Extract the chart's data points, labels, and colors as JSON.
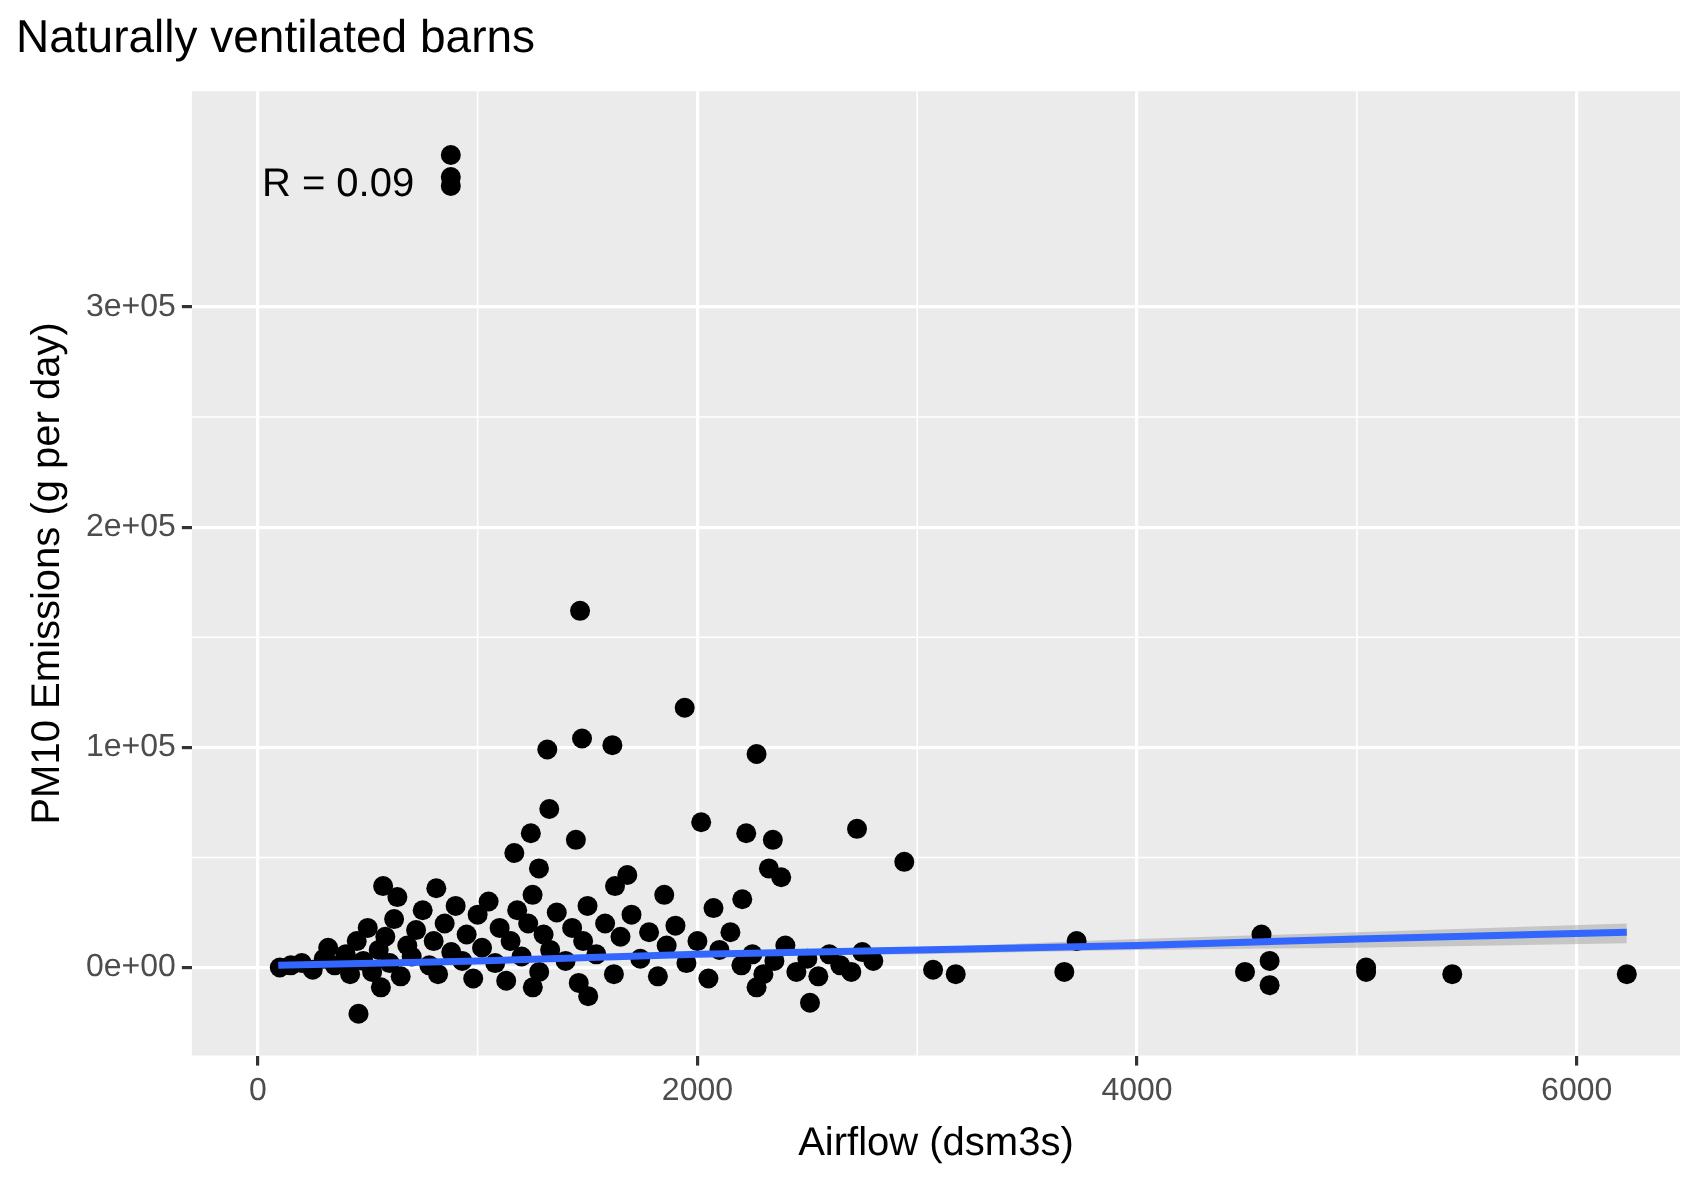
{
  "chart_data": {
    "type": "scatter",
    "title": "Naturally ventilated barns",
    "xlabel": "Airflow (dsm3s)",
    "ylabel": "PM10 Emissions (g per day)",
    "annotations": [
      "R = 0.09"
    ],
    "xlim": [
      -300,
      6470
    ],
    "xticks": [
      0,
      2000,
      4000,
      6000
    ],
    "ylim": [
      -40000,
      398000
    ],
    "yticks": [
      {
        "value": 0,
        "label": "0e+00"
      },
      {
        "value": 100000,
        "label": "1e+05"
      },
      {
        "value": 200000,
        "label": "2e+05"
      },
      {
        "value": 300000,
        "label": "3e+05"
      }
    ],
    "grid": true,
    "legend": false,
    "series": [
      {
        "marker": "circle",
        "color": "#000000",
        "x": [
          878,
          878,
          878,
          1466,
          1942,
          1317,
          1475,
          1613,
          2269,
          1326,
          2017,
          2222,
          2343,
          2726,
          2941,
          1242,
          1167,
          1447,
          1279,
          2325,
          2381,
          2204,
          1849,
          1681,
          1625,
          570,
          812,
          635,
          2073,
          458,
          1503,
          2512,
          2269,
          560,
          1251,
          3072,
          3175,
          3669,
          3725,
          4491,
          4566,
          4603,
          4603,
          5042,
          5042,
          5434,
          6228,
          100,
          150,
          200,
          250,
          300,
          320,
          350,
          400,
          420,
          450,
          480,
          500,
          520,
          550,
          580,
          600,
          620,
          650,
          680,
          700,
          720,
          750,
          780,
          800,
          820,
          850,
          880,
          900,
          930,
          950,
          980,
          1000,
          1020,
          1050,
          1080,
          1100,
          1130,
          1150,
          1180,
          1200,
          1230,
          1250,
          1280,
          1300,
          1330,
          1360,
          1400,
          1430,
          1460,
          1480,
          1500,
          1540,
          1580,
          1620,
          1650,
          1700,
          1740,
          1780,
          1820,
          1860,
          1900,
          1950,
          2000,
          2050,
          2100,
          2150,
          2200,
          2250,
          2300,
          2350,
          2400,
          2450,
          2500,
          2550,
          2600,
          2650,
          2700,
          2750,
          2800
        ],
        "values": [
          369000,
          359000,
          355000,
          162000,
          118000,
          99000,
          104000,
          101000,
          97000,
          72000,
          66000,
          61000,
          58000,
          63000,
          48000,
          61000,
          52000,
          58000,
          45000,
          45000,
          41000,
          31000,
          33000,
          42000,
          37000,
          37000,
          36000,
          32000,
          27000,
          -21000,
          -13000,
          -16000,
          -9000,
          -9000,
          -9000,
          -1000,
          -3000,
          -2000,
          12000,
          -2000,
          15000,
          3000,
          -8000,
          0,
          -2000,
          -3000,
          -3000,
          0,
          1000,
          2000,
          -1000,
          4000,
          9000,
          1000,
          6000,
          -3000,
          12000,
          3000,
          18000,
          -2000,
          8000,
          14000,
          2000,
          22000,
          -4000,
          10000,
          5000,
          17000,
          26000,
          1000,
          12000,
          -3000,
          20000,
          7000,
          28000,
          3000,
          15000,
          -5000,
          24000,
          9000,
          30000,
          2000,
          18000,
          -6000,
          12000,
          26000,
          5000,
          20000,
          33000,
          -2000,
          15000,
          8000,
          25000,
          3000,
          18000,
          -7000,
          12000,
          28000,
          6000,
          20000,
          -3000,
          14000,
          24000,
          4000,
          16000,
          -4000,
          10000,
          19000,
          2000,
          12000,
          -5000,
          8000,
          16000,
          1000,
          6000,
          -3000,
          3000,
          10000,
          -2000,
          4000,
          -4000,
          6000,
          1000,
          -2000,
          7000,
          3000
        ]
      },
      {
        "type": "line",
        "marker": "none",
        "color": "#3366ff",
        "x": [
          93,
          1000,
          2000,
          3000,
          4000,
          5000,
          6228
        ],
        "values": [
          1000,
          3000,
          6000,
          8000,
          10000,
          13000,
          16000
        ],
        "lower": [
          0,
          2000,
          5000,
          6000,
          8000,
          9000,
          11000
        ],
        "upper": [
          2000,
          4000,
          7000,
          9000,
          13000,
          16000,
          20000
        ]
      }
    ]
  }
}
